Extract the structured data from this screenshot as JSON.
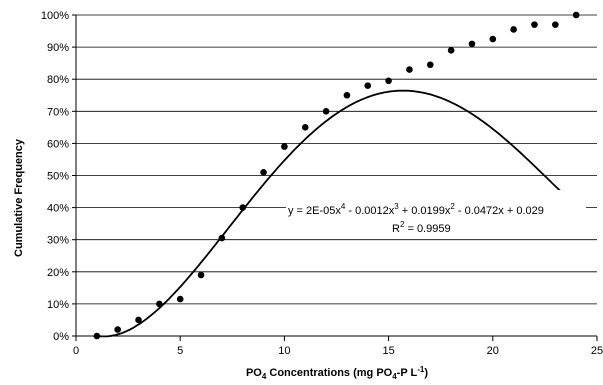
{
  "chart_data": {
    "type": "scatter",
    "ylabel": "Cumulative Frequency",
    "xlabel": {
      "p1": "PO",
      "s1": "4",
      "p2": " Concentrations (mg PO",
      "s2": "4",
      "p3": "-P L",
      "s3": "-1",
      "p4": ")"
    },
    "xlim": [
      0,
      25
    ],
    "ylim": [
      0,
      100
    ],
    "x_ticks": [
      0,
      5,
      10,
      15,
      20,
      25
    ],
    "y_ticks": [
      0,
      10,
      20,
      30,
      40,
      50,
      60,
      70,
      80,
      90,
      100
    ],
    "y_tick_suffix": "%",
    "grid": "horizontal",
    "series": [
      {
        "x": [
          1,
          2,
          3,
          4,
          5,
          6,
          7,
          8,
          9,
          10,
          11,
          12,
          13,
          14,
          15,
          16,
          17,
          18,
          19,
          20,
          21,
          22,
          23,
          24
        ],
        "y": [
          0,
          2,
          5,
          10,
          11.5,
          19,
          30.5,
          40,
          51,
          59,
          65,
          70,
          75,
          78,
          79.5,
          83,
          84.5,
          89,
          91,
          92.5,
          95.5,
          97,
          97,
          100
        ]
      }
    ],
    "trendline": {
      "type": "polynomial",
      "coefficients": [
        2e-05,
        -0.0012,
        0.0199,
        -0.0472,
        0.029
      ],
      "x_range": [
        1,
        24
      ]
    },
    "annotations": {
      "eq_a": "y = 2E-05x",
      "eq_a_sup": "4",
      "eq_b": " - 0.0012x",
      "eq_b_sup": "3",
      "eq_c": " + 0.0199x",
      "eq_c_sup": "2",
      "eq_d": " - 0.0472x + 0.029",
      "r2_a": "R",
      "r2_sup": "2",
      "r2_b": " = 0.9959"
    }
  }
}
